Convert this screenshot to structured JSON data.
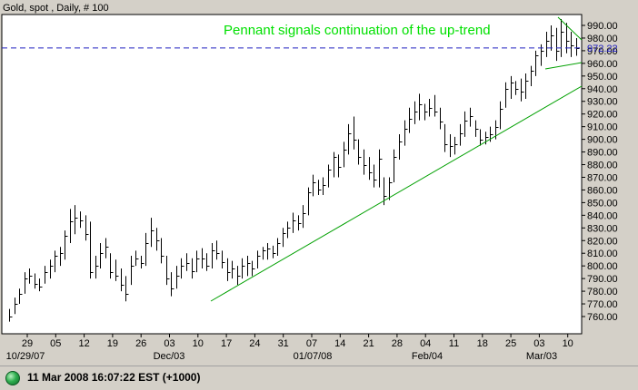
{
  "chart_data": {
    "type": "ohlc",
    "title": "Gold, spot , Daily, # 100",
    "annotation": "Pennant signals continuation of the up-trend",
    "y_range": [
      750,
      1000
    ],
    "y_ticks": [
      760,
      770,
      780,
      790,
      800,
      810,
      820,
      830,
      840,
      850,
      860,
      870,
      880,
      890,
      900,
      910,
      920,
      930,
      940,
      950,
      960,
      970,
      980,
      990
    ],
    "reference_line": {
      "value": 972.22,
      "label": "972.22"
    },
    "x_day_labels": [
      "29",
      "05",
      "12",
      "19",
      "26",
      "03",
      "10",
      "17",
      "24",
      "31",
      "07",
      "14",
      "21",
      "28",
      "04",
      "11",
      "18",
      "25",
      "03",
      "10"
    ],
    "x_period_labels": [
      "10/29/07",
      "Dec/03",
      "01/07/08",
      "Feb/04",
      "Mar/03"
    ],
    "bars": [
      {
        "h": 766,
        "l": 756,
        "c": 760
      },
      {
        "h": 775,
        "l": 762,
        "c": 770
      },
      {
        "h": 782,
        "l": 770,
        "c": 778
      },
      {
        "h": 795,
        "l": 778,
        "c": 790
      },
      {
        "h": 798,
        "l": 786,
        "c": 792
      },
      {
        "h": 794,
        "l": 782,
        "c": 786
      },
      {
        "h": 790,
        "l": 780,
        "c": 784
      },
      {
        "h": 800,
        "l": 786,
        "c": 795
      },
      {
        "h": 805,
        "l": 790,
        "c": 800
      },
      {
        "h": 812,
        "l": 795,
        "c": 808
      },
      {
        "h": 815,
        "l": 800,
        "c": 810
      },
      {
        "h": 828,
        "l": 805,
        "c": 824
      },
      {
        "h": 845,
        "l": 818,
        "c": 835
      },
      {
        "h": 848,
        "l": 825,
        "c": 838
      },
      {
        "h": 843,
        "l": 830,
        "c": 836
      },
      {
        "h": 840,
        "l": 820,
        "c": 825
      },
      {
        "h": 835,
        "l": 790,
        "c": 795
      },
      {
        "h": 808,
        "l": 790,
        "c": 800
      },
      {
        "h": 818,
        "l": 798,
        "c": 810
      },
      {
        "h": 822,
        "l": 806,
        "c": 815
      },
      {
        "h": 810,
        "l": 790,
        "c": 795
      },
      {
        "h": 805,
        "l": 788,
        "c": 792
      },
      {
        "h": 798,
        "l": 780,
        "c": 785
      },
      {
        "h": 792,
        "l": 772,
        "c": 778
      },
      {
        "h": 808,
        "l": 785,
        "c": 800
      },
      {
        "h": 812,
        "l": 800,
        "c": 806
      },
      {
        "h": 808,
        "l": 798,
        "c": 802
      },
      {
        "h": 826,
        "l": 800,
        "c": 818
      },
      {
        "h": 838,
        "l": 815,
        "c": 828
      },
      {
        "h": 830,
        "l": 812,
        "c": 820
      },
      {
        "h": 822,
        "l": 802,
        "c": 808
      },
      {
        "h": 808,
        "l": 785,
        "c": 790
      },
      {
        "h": 795,
        "l": 776,
        "c": 782
      },
      {
        "h": 800,
        "l": 782,
        "c": 792
      },
      {
        "h": 806,
        "l": 790,
        "c": 800
      },
      {
        "h": 810,
        "l": 796,
        "c": 802
      },
      {
        "h": 806,
        "l": 790,
        "c": 796
      },
      {
        "h": 812,
        "l": 795,
        "c": 806
      },
      {
        "h": 814,
        "l": 798,
        "c": 806
      },
      {
        "h": 810,
        "l": 796,
        "c": 800
      },
      {
        "h": 818,
        "l": 798,
        "c": 812
      },
      {
        "h": 820,
        "l": 805,
        "c": 810
      },
      {
        "h": 812,
        "l": 798,
        "c": 803
      },
      {
        "h": 806,
        "l": 788,
        "c": 795
      },
      {
        "h": 804,
        "l": 790,
        "c": 798
      },
      {
        "h": 800,
        "l": 785,
        "c": 792
      },
      {
        "h": 806,
        "l": 790,
        "c": 800
      },
      {
        "h": 808,
        "l": 792,
        "c": 802
      },
      {
        "h": 804,
        "l": 792,
        "c": 798
      },
      {
        "h": 812,
        "l": 798,
        "c": 808
      },
      {
        "h": 815,
        "l": 805,
        "c": 812
      },
      {
        "h": 818,
        "l": 805,
        "c": 814
      },
      {
        "h": 816,
        "l": 806,
        "c": 810
      },
      {
        "h": 822,
        "l": 808,
        "c": 818
      },
      {
        "h": 830,
        "l": 815,
        "c": 826
      },
      {
        "h": 835,
        "l": 822,
        "c": 830
      },
      {
        "h": 842,
        "l": 826,
        "c": 836
      },
      {
        "h": 840,
        "l": 828,
        "c": 834
      },
      {
        "h": 848,
        "l": 830,
        "c": 842
      },
      {
        "h": 862,
        "l": 840,
        "c": 858
      },
      {
        "h": 872,
        "l": 855,
        "c": 866
      },
      {
        "h": 868,
        "l": 856,
        "c": 860
      },
      {
        "h": 870,
        "l": 856,
        "c": 864
      },
      {
        "h": 880,
        "l": 862,
        "c": 876
      },
      {
        "h": 890,
        "l": 870,
        "c": 886
      },
      {
        "h": 888,
        "l": 870,
        "c": 878
      },
      {
        "h": 898,
        "l": 878,
        "c": 892
      },
      {
        "h": 912,
        "l": 888,
        "c": 905
      },
      {
        "h": 918,
        "l": 892,
        "c": 900
      },
      {
        "h": 900,
        "l": 880,
        "c": 886
      },
      {
        "h": 892,
        "l": 872,
        "c": 880
      },
      {
        "h": 886,
        "l": 868,
        "c": 874
      },
      {
        "h": 880,
        "l": 862,
        "c": 868
      },
      {
        "h": 892,
        "l": 862,
        "c": 885
      },
      {
        "h": 870,
        "l": 848,
        "c": 855
      },
      {
        "h": 870,
        "l": 852,
        "c": 866
      },
      {
        "h": 892,
        "l": 866,
        "c": 886
      },
      {
        "h": 904,
        "l": 884,
        "c": 898
      },
      {
        "h": 915,
        "l": 895,
        "c": 908
      },
      {
        "h": 925,
        "l": 905,
        "c": 916
      },
      {
        "h": 930,
        "l": 912,
        "c": 922
      },
      {
        "h": 936,
        "l": 915,
        "c": 928
      },
      {
        "h": 928,
        "l": 915,
        "c": 922
      },
      {
        "h": 932,
        "l": 918,
        "c": 925
      },
      {
        "h": 935,
        "l": 918,
        "c": 922
      },
      {
        "h": 925,
        "l": 908,
        "c": 914
      },
      {
        "h": 912,
        "l": 890,
        "c": 896
      },
      {
        "h": 904,
        "l": 886,
        "c": 895
      },
      {
        "h": 902,
        "l": 888,
        "c": 896
      },
      {
        "h": 912,
        "l": 895,
        "c": 905
      },
      {
        "h": 922,
        "l": 902,
        "c": 915
      },
      {
        "h": 925,
        "l": 910,
        "c": 918
      },
      {
        "h": 915,
        "l": 902,
        "c": 908
      },
      {
        "h": 908,
        "l": 895,
        "c": 900
      },
      {
        "h": 906,
        "l": 896,
        "c": 902
      },
      {
        "h": 910,
        "l": 898,
        "c": 904
      },
      {
        "h": 915,
        "l": 900,
        "c": 910
      },
      {
        "h": 930,
        "l": 908,
        "c": 924
      },
      {
        "h": 945,
        "l": 925,
        "c": 940
      },
      {
        "h": 950,
        "l": 932,
        "c": 945
      },
      {
        "h": 946,
        "l": 935,
        "c": 940
      },
      {
        "h": 948,
        "l": 930,
        "c": 938
      },
      {
        "h": 952,
        "l": 932,
        "c": 946
      },
      {
        "h": 958,
        "l": 942,
        "c": 954
      },
      {
        "h": 970,
        "l": 950,
        "c": 966
      },
      {
        "h": 975,
        "l": 958,
        "c": 970
      },
      {
        "h": 985,
        "l": 965,
        "c": 978
      },
      {
        "h": 990,
        "l": 970,
        "c": 982
      },
      {
        "h": 988,
        "l": 962,
        "c": 970
      },
      {
        "h": 995,
        "l": 965,
        "c": 985
      },
      {
        "h": 992,
        "l": 968,
        "c": 978
      },
      {
        "h": 985,
        "l": 965,
        "c": 974
      },
      {
        "h": 980,
        "l": 966,
        "c": 972
      }
    ]
  },
  "status": {
    "timestamp": "11 Mar 2008 16:07:22  EST (+1000)"
  },
  "colors": {
    "background": "#d4d0c8",
    "plot_background": "#ffffff",
    "bars": "#000000",
    "trend_line": "#00a000",
    "annotation": "#00e000",
    "reference_line": "#2020c0"
  }
}
